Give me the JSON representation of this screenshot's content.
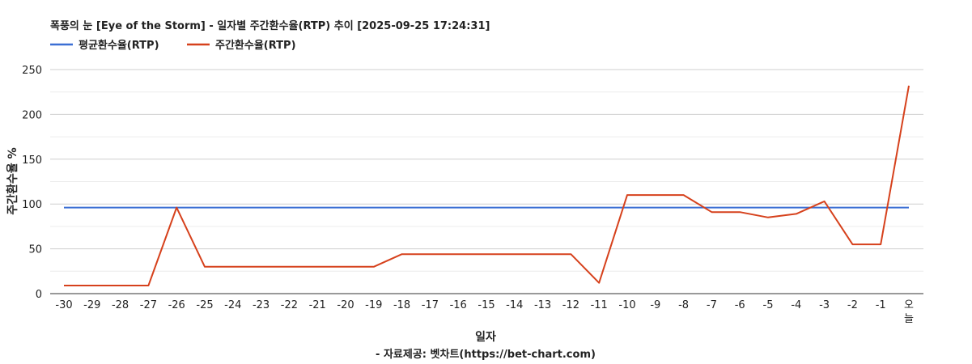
{
  "chart_data": {
    "type": "line",
    "title": "폭풍의 눈 [Eye of the Storm] - 일자별 주간환수율(RTP) 추이 [2025-09-25 17:24:31]",
    "xlabel": "일자",
    "ylabel": "주간환수율 %",
    "credit": "- 자료제공: 벳차트(https://bet-chart.com)",
    "categories": [
      "-30",
      "-29",
      "-28",
      "-27",
      "-26",
      "-25",
      "-24",
      "-23",
      "-22",
      "-21",
      "-20",
      "-19",
      "-18",
      "-17",
      "-16",
      "-15",
      "-14",
      "-13",
      "-12",
      "-11",
      "-10",
      "-9",
      "-8",
      "-7",
      "-6",
      "-5",
      "-4",
      "-3",
      "-2",
      "-1",
      "오늘"
    ],
    "ylim": [
      0,
      250
    ],
    "yticks": [
      0,
      50,
      100,
      150,
      200,
      250
    ],
    "grid": true,
    "legend_position": "top-left",
    "series": [
      {
        "name": "평균환수율(RTP)",
        "color": "#3b6fd4",
        "values": [
          96,
          96,
          96,
          96,
          96,
          96,
          96,
          96,
          96,
          96,
          96,
          96,
          96,
          96,
          96,
          96,
          96,
          96,
          96,
          96,
          96,
          96,
          96,
          96,
          96,
          96,
          96,
          96,
          96,
          96,
          96
        ]
      },
      {
        "name": "주간환수율(RTP)",
        "color": "#d6411c",
        "values": [
          9,
          9,
          9,
          9,
          96,
          30,
          30,
          30,
          30,
          30,
          30,
          30,
          44,
          44,
          44,
          44,
          44,
          44,
          44,
          12,
          110,
          110,
          110,
          91,
          91,
          85,
          89,
          103,
          55,
          55,
          232
        ]
      }
    ]
  }
}
